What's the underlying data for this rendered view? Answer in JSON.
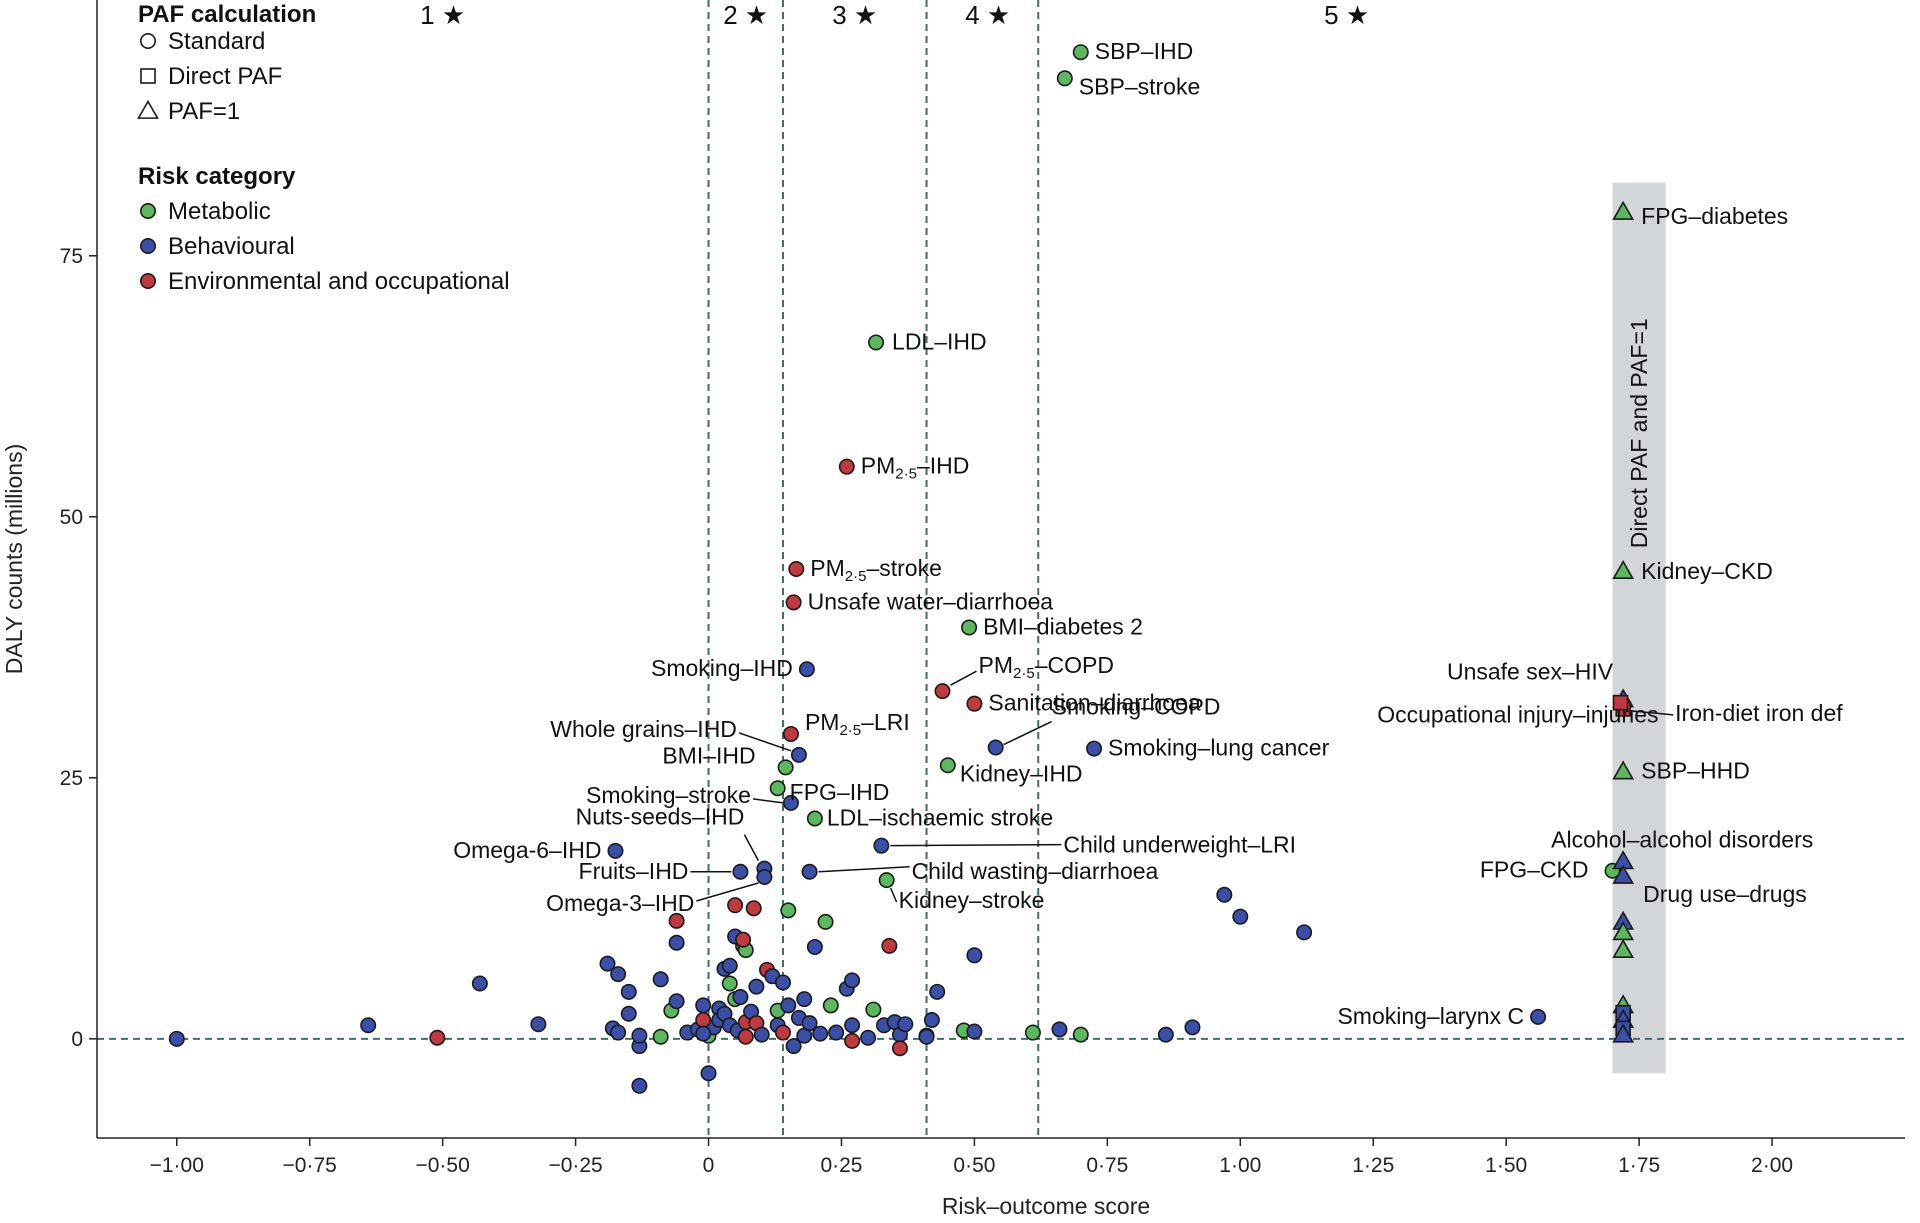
{
  "colors": {
    "metabolic": "#5cb85c",
    "behavioural": "#3a4fa8",
    "environmental": "#c0393f",
    "band": "#d3d6d9",
    "dashed": "#3c6e70",
    "point_stroke": "#1a1a1a"
  },
  "legend": {
    "paf_title": "PAF calculation",
    "paf_items": [
      {
        "shape": "circle",
        "label": "Standard"
      },
      {
        "shape": "square",
        "label": "Direct PAF"
      },
      {
        "shape": "triangle",
        "label": "PAF=1"
      }
    ],
    "risk_title": "Risk category",
    "risk_items": [
      {
        "cat": "metabolic",
        "label": "Metabolic"
      },
      {
        "cat": "behavioural",
        "label": "Behavioural"
      },
      {
        "cat": "environmental",
        "label": "Environmental and occupational"
      }
    ]
  },
  "chart_data": {
    "type": "scatter",
    "title": "",
    "xlabel": "Risk–outcome score",
    "ylabel": "DALY counts (millions)",
    "xlim": [
      -1.15,
      2.25
    ],
    "ylim": [
      -9.5,
      99.5
    ],
    "x_ticks": [
      -1.0,
      -0.75,
      -0.5,
      -0.25,
      0,
      0.25,
      0.5,
      0.75,
      1.0,
      1.25,
      1.5,
      1.75,
      2.0
    ],
    "x_tick_labels": [
      "−1·00",
      "−0·75",
      "−0·50",
      "−0·25",
      "0",
      "0·25",
      "0·50",
      "0·75",
      "1·00",
      "1·25",
      "1·50",
      "1·75",
      "2·00"
    ],
    "y_ticks": [
      0,
      25,
      50,
      75
    ],
    "y_tick_labels": [
      "0",
      "25",
      "50",
      "75"
    ],
    "star_zone_boundaries": [
      0,
      0.14,
      0.41,
      0.62
    ],
    "star_zones": [
      {
        "label": "1",
        "x": -0.5
      },
      {
        "label": "2",
        "x": 0.07
      },
      {
        "label": "3",
        "x": 0.275
      },
      {
        "label": "4",
        "x": 0.525
      },
      {
        "label": "5",
        "x": 1.2
      }
    ],
    "band": {
      "x": [
        1.7,
        1.8
      ],
      "y": [
        -3.3,
        82
      ],
      "label": "Direct PAF and PAF=1"
    },
    "labeled_points": [
      {
        "label": "SBP–IHD",
        "x": 0.7,
        "y": 94.5,
        "cat": "metabolic",
        "shape": "circle"
      },
      {
        "label": "SBP–stroke",
        "x": 0.67,
        "y": 92.0,
        "cat": "metabolic",
        "shape": "circle"
      },
      {
        "label": "LDL–IHD",
        "x": 0.315,
        "y": 66.7,
        "cat": "metabolic",
        "shape": "circle"
      },
      {
        "label": "PM",
        "sub": "2·5",
        "suffix": "–IHD",
        "x": 0.26,
        "y": 54.8,
        "cat": "environmental",
        "shape": "circle"
      },
      {
        "label": "PM",
        "sub": "2·5",
        "suffix": "–stroke",
        "x": 0.165,
        "y": 45.0,
        "cat": "environmental",
        "shape": "circle"
      },
      {
        "label": "Unsafe water–diarrhoea",
        "x": 0.16,
        "y": 41.8,
        "cat": "environmental",
        "shape": "circle"
      },
      {
        "label": "BMI–diabetes 2",
        "x": 0.49,
        "y": 39.4,
        "cat": "metabolic",
        "shape": "circle"
      },
      {
        "label": "Smoking–IHD",
        "x": 0.185,
        "y": 35.4,
        "cat": "behavioural",
        "shape": "circle"
      },
      {
        "label": "PM",
        "sub": "2·5",
        "suffix": "–COPD",
        "x": 0.44,
        "y": 33.3,
        "cat": "environmental",
        "shape": "circle"
      },
      {
        "label": "Sanitation–diarrhoea",
        "x": 0.5,
        "y": 32.1,
        "cat": "environmental",
        "shape": "circle"
      },
      {
        "label": "PM",
        "sub": "2·5",
        "suffix": "–LRI",
        "x": 0.155,
        "y": 29.2,
        "cat": "environmental",
        "shape": "circle"
      },
      {
        "label": "Whole grains–IHD",
        "x": 0.17,
        "y": 27.2,
        "cat": "behavioural",
        "shape": "circle"
      },
      {
        "label": "Smoking–COPD",
        "x": 0.54,
        "y": 27.9,
        "cat": "behavioural",
        "shape": "circle"
      },
      {
        "label": "Smoking–lung cancer",
        "x": 0.725,
        "y": 27.8,
        "cat": "behavioural",
        "shape": "circle"
      },
      {
        "label": "BMI–IHD",
        "x": 0.145,
        "y": 26.0,
        "cat": "metabolic",
        "shape": "circle"
      },
      {
        "label": "FPG–IHD",
        "x": 0.13,
        "y": 24.0,
        "cat": "metabolic",
        "shape": "circle"
      },
      {
        "label": "Kidney–IHD",
        "x": 0.45,
        "y": 26.2,
        "cat": "metabolic",
        "shape": "circle"
      },
      {
        "label": "Smoking–stroke",
        "x": 0.155,
        "y": 22.6,
        "cat": "behavioural",
        "shape": "circle"
      },
      {
        "label": "LDL–ischaemic stroke",
        "x": 0.2,
        "y": 21.1,
        "cat": "metabolic",
        "shape": "circle"
      },
      {
        "label": "Nuts-seeds–IHD",
        "x": 0.105,
        "y": 16.3,
        "cat": "behavioural",
        "shape": "circle"
      },
      {
        "label": "Omega-6–IHD",
        "x": -0.175,
        "y": 18.0,
        "cat": "behavioural",
        "shape": "circle"
      },
      {
        "label": "Child underweight–LRI",
        "x": 0.325,
        "y": 18.5,
        "cat": "behavioural",
        "shape": "circle"
      },
      {
        "label": "Fruits–IHD",
        "x": 0.06,
        "y": 16.0,
        "cat": "behavioural",
        "shape": "circle"
      },
      {
        "label": "Child wasting–diarrhoea",
        "x": 0.19,
        "y": 16.0,
        "cat": "behavioural",
        "shape": "circle"
      },
      {
        "label": "Omega-3–IHD",
        "x": 0.105,
        "y": 15.5,
        "cat": "behavioural",
        "shape": "circle"
      },
      {
        "label": "Kidney–stroke",
        "x": 0.335,
        "y": 15.2,
        "cat": "metabolic",
        "shape": "circle"
      },
      {
        "label": "Smoking–larynx C",
        "x": 1.56,
        "y": 2.1,
        "cat": "behavioural",
        "shape": "circle"
      },
      {
        "label": "FPG–CKD",
        "x": 1.7,
        "y": 16.1,
        "cat": "metabolic",
        "shape": "circle"
      },
      {
        "label": "FPG–diabetes",
        "x": 1.72,
        "y": 79.2,
        "cat": "metabolic",
        "shape": "triangle"
      },
      {
        "label": "Kidney–CKD",
        "x": 1.72,
        "y": 44.8,
        "cat": "metabolic",
        "shape": "triangle"
      },
      {
        "label": "Unsafe sex–HIV",
        "x": 1.72,
        "y": 32.5,
        "cat": "behavioural",
        "shape": "triangle"
      },
      {
        "label": "Iron-diet iron def",
        "x": 1.72,
        "y": 31.6,
        "cat": "environmental",
        "shape": "square"
      },
      {
        "label": "Occupational injury–injuries",
        "x": 1.715,
        "y": 32.2,
        "cat": "environmental",
        "shape": "square"
      },
      {
        "label": "SBP–HHD",
        "x": 1.72,
        "y": 25.6,
        "cat": "metabolic",
        "shape": "triangle"
      },
      {
        "label": "Alcohol–alcohol disorders",
        "x": 1.72,
        "y": 17.0,
        "cat": "behavioural",
        "shape": "triangle"
      },
      {
        "label": "Drug use–drugs",
        "x": 1.72,
        "y": 15.6,
        "cat": "behavioural",
        "shape": "triangle"
      }
    ],
    "unlabeled_points": [
      {
        "x": -1.0,
        "y": 0.0,
        "cat": "behavioural",
        "shape": "circle"
      },
      {
        "x": -0.64,
        "y": 1.3,
        "cat": "behavioural",
        "shape": "circle"
      },
      {
        "x": -0.51,
        "y": 0.1,
        "cat": "environmental",
        "shape": "circle"
      },
      {
        "x": -0.43,
        "y": 5.3,
        "cat": "behavioural",
        "shape": "circle"
      },
      {
        "x": -0.32,
        "y": 1.4,
        "cat": "behavioural",
        "shape": "circle"
      },
      {
        "x": -0.19,
        "y": 7.2,
        "cat": "behavioural",
        "shape": "circle"
      },
      {
        "x": -0.17,
        "y": 6.2,
        "cat": "behavioural",
        "shape": "circle"
      },
      {
        "x": -0.15,
        "y": 4.5,
        "cat": "behavioural",
        "shape": "circle"
      },
      {
        "x": -0.15,
        "y": 2.4,
        "cat": "behavioural",
        "shape": "circle"
      },
      {
        "x": -0.18,
        "y": 1.0,
        "cat": "behavioural",
        "shape": "circle"
      },
      {
        "x": -0.17,
        "y": 0.6,
        "cat": "behavioural",
        "shape": "circle"
      },
      {
        "x": -0.13,
        "y": -0.7,
        "cat": "behavioural",
        "shape": "circle"
      },
      {
        "x": -0.13,
        "y": -4.5,
        "cat": "behavioural",
        "shape": "circle"
      },
      {
        "x": -0.09,
        "y": 5.7,
        "cat": "behavioural",
        "shape": "circle"
      },
      {
        "x": -0.06,
        "y": 9.2,
        "cat": "behavioural",
        "shape": "circle"
      },
      {
        "x": -0.06,
        "y": 11.3,
        "cat": "environmental",
        "shape": "circle"
      },
      {
        "x": -0.07,
        "y": 2.7,
        "cat": "metabolic",
        "shape": "circle"
      },
      {
        "x": -0.06,
        "y": 3.6,
        "cat": "behavioural",
        "shape": "circle"
      },
      {
        "x": -0.09,
        "y": 0.2,
        "cat": "metabolic",
        "shape": "circle"
      },
      {
        "x": -0.04,
        "y": 0.6,
        "cat": "behavioural",
        "shape": "circle"
      },
      {
        "x": -0.13,
        "y": 0.3,
        "cat": "behavioural",
        "shape": "circle"
      },
      {
        "x": -0.02,
        "y": 0.9,
        "cat": "behavioural",
        "shape": "circle"
      },
      {
        "x": -0.01,
        "y": 3.2,
        "cat": "behavioural",
        "shape": "circle"
      },
      {
        "x": 0.0,
        "y": -3.3,
        "cat": "behavioural",
        "shape": "circle"
      },
      {
        "x": 0.0,
        "y": 0.3,
        "cat": "metabolic",
        "shape": "circle"
      },
      {
        "x": 0.01,
        "y": 1.1,
        "cat": "behavioural",
        "shape": "circle"
      },
      {
        "x": 0.02,
        "y": 2.9,
        "cat": "behavioural",
        "shape": "circle"
      },
      {
        "x": 0.03,
        "y": 6.7,
        "cat": "behavioural",
        "shape": "circle"
      },
      {
        "x": 0.04,
        "y": 7.0,
        "cat": "behavioural",
        "shape": "circle"
      },
      {
        "x": 0.04,
        "y": 5.3,
        "cat": "metabolic",
        "shape": "circle"
      },
      {
        "x": 0.05,
        "y": 9.8,
        "cat": "behavioural",
        "shape": "circle"
      },
      {
        "x": 0.05,
        "y": 12.8,
        "cat": "environmental",
        "shape": "circle"
      },
      {
        "x": 0.065,
        "y": 8.9,
        "cat": "environmental",
        "shape": "circle"
      },
      {
        "x": 0.07,
        "y": 8.5,
        "cat": "metabolic",
        "shape": "circle"
      },
      {
        "x": 0.065,
        "y": 9.5,
        "cat": "environmental",
        "shape": "circle"
      },
      {
        "x": 0.085,
        "y": 12.5,
        "cat": "environmental",
        "shape": "circle"
      },
      {
        "x": -0.01,
        "y": 1.8,
        "cat": "environmental",
        "shape": "circle"
      },
      {
        "x": -0.01,
        "y": 0.5,
        "cat": "behavioural",
        "shape": "circle"
      },
      {
        "x": 0.02,
        "y": 1.8,
        "cat": "behavioural",
        "shape": "circle"
      },
      {
        "x": 0.03,
        "y": 2.4,
        "cat": "behavioural",
        "shape": "circle"
      },
      {
        "x": 0.04,
        "y": 1.3,
        "cat": "behavioural",
        "shape": "circle"
      },
      {
        "x": 0.05,
        "y": 3.8,
        "cat": "metabolic",
        "shape": "circle"
      },
      {
        "x": 0.055,
        "y": 0.8,
        "cat": "behavioural",
        "shape": "circle"
      },
      {
        "x": 0.06,
        "y": 4.0,
        "cat": "behavioural",
        "shape": "circle"
      },
      {
        "x": 0.07,
        "y": 1.6,
        "cat": "environmental",
        "shape": "circle"
      },
      {
        "x": 0.07,
        "y": 0.2,
        "cat": "environmental",
        "shape": "circle"
      },
      {
        "x": 0.08,
        "y": 2.6,
        "cat": "behavioural",
        "shape": "circle"
      },
      {
        "x": 0.09,
        "y": 5.0,
        "cat": "behavioural",
        "shape": "circle"
      },
      {
        "x": 0.09,
        "y": 1.5,
        "cat": "environmental",
        "shape": "circle"
      },
      {
        "x": 0.1,
        "y": 0.4,
        "cat": "behavioural",
        "shape": "circle"
      },
      {
        "x": 0.11,
        "y": 6.6,
        "cat": "environmental",
        "shape": "circle"
      },
      {
        "x": 0.12,
        "y": 6.0,
        "cat": "behavioural",
        "shape": "circle"
      },
      {
        "x": 0.13,
        "y": 2.7,
        "cat": "metabolic",
        "shape": "circle"
      },
      {
        "x": 0.13,
        "y": 1.3,
        "cat": "behavioural",
        "shape": "circle"
      },
      {
        "x": 0.14,
        "y": 5.4,
        "cat": "behavioural",
        "shape": "circle"
      },
      {
        "x": 0.14,
        "y": 0.6,
        "cat": "environmental",
        "shape": "circle"
      },
      {
        "x": 0.15,
        "y": 3.2,
        "cat": "behavioural",
        "shape": "circle"
      },
      {
        "x": 0.15,
        "y": 12.3,
        "cat": "metabolic",
        "shape": "circle"
      },
      {
        "x": 0.16,
        "y": -0.7,
        "cat": "behavioural",
        "shape": "circle"
      },
      {
        "x": 0.17,
        "y": 2.0,
        "cat": "behavioural",
        "shape": "circle"
      },
      {
        "x": 0.18,
        "y": 0.3,
        "cat": "behavioural",
        "shape": "circle"
      },
      {
        "x": 0.18,
        "y": 3.8,
        "cat": "behavioural",
        "shape": "circle"
      },
      {
        "x": 0.19,
        "y": 1.5,
        "cat": "behavioural",
        "shape": "circle"
      },
      {
        "x": 0.2,
        "y": 8.8,
        "cat": "behavioural",
        "shape": "circle"
      },
      {
        "x": 0.21,
        "y": 0.5,
        "cat": "behavioural",
        "shape": "circle"
      },
      {
        "x": 0.22,
        "y": 11.2,
        "cat": "metabolic",
        "shape": "circle"
      },
      {
        "x": 0.23,
        "y": 3.2,
        "cat": "metabolic",
        "shape": "circle"
      },
      {
        "x": 0.24,
        "y": 0.6,
        "cat": "behavioural",
        "shape": "circle"
      },
      {
        "x": 0.26,
        "y": 4.8,
        "cat": "behavioural",
        "shape": "circle"
      },
      {
        "x": 0.27,
        "y": 5.6,
        "cat": "behavioural",
        "shape": "circle"
      },
      {
        "x": 0.27,
        "y": 1.3,
        "cat": "behavioural",
        "shape": "circle"
      },
      {
        "x": 0.27,
        "y": -0.2,
        "cat": "environmental",
        "shape": "circle"
      },
      {
        "x": 0.3,
        "y": 0.1,
        "cat": "behavioural",
        "shape": "circle"
      },
      {
        "x": 0.31,
        "y": 2.8,
        "cat": "metabolic",
        "shape": "circle"
      },
      {
        "x": 0.33,
        "y": 1.3,
        "cat": "behavioural",
        "shape": "circle"
      },
      {
        "x": 0.34,
        "y": 8.9,
        "cat": "environmental",
        "shape": "circle"
      },
      {
        "x": 0.35,
        "y": 1.6,
        "cat": "behavioural",
        "shape": "circle"
      },
      {
        "x": 0.36,
        "y": 0.4,
        "cat": "behavioural",
        "shape": "circle"
      },
      {
        "x": 0.36,
        "y": -0.9,
        "cat": "environmental",
        "shape": "circle"
      },
      {
        "x": 0.37,
        "y": 1.4,
        "cat": "behavioural",
        "shape": "circle"
      },
      {
        "x": 0.41,
        "y": 0.3,
        "cat": "metabolic",
        "shape": "circle"
      },
      {
        "x": 0.41,
        "y": 0.2,
        "cat": "behavioural",
        "shape": "circle"
      },
      {
        "x": 0.42,
        "y": 1.8,
        "cat": "behavioural",
        "shape": "circle"
      },
      {
        "x": 0.43,
        "y": 4.5,
        "cat": "behavioural",
        "shape": "circle"
      },
      {
        "x": 0.48,
        "y": 0.8,
        "cat": "metabolic",
        "shape": "circle"
      },
      {
        "x": 0.5,
        "y": 0.7,
        "cat": "behavioural",
        "shape": "circle"
      },
      {
        "x": 0.5,
        "y": 8.0,
        "cat": "behavioural",
        "shape": "circle"
      },
      {
        "x": 0.61,
        "y": 0.6,
        "cat": "metabolic",
        "shape": "circle"
      },
      {
        "x": 0.66,
        "y": 0.9,
        "cat": "behavioural",
        "shape": "circle"
      },
      {
        "x": 0.7,
        "y": 0.4,
        "cat": "metabolic",
        "shape": "circle"
      },
      {
        "x": 0.86,
        "y": 0.4,
        "cat": "behavioural",
        "shape": "circle"
      },
      {
        "x": 0.91,
        "y": 1.1,
        "cat": "behavioural",
        "shape": "circle"
      },
      {
        "x": 0.97,
        "y": 13.8,
        "cat": "behavioural",
        "shape": "circle"
      },
      {
        "x": 1.0,
        "y": 11.7,
        "cat": "behavioural",
        "shape": "circle"
      },
      {
        "x": 1.12,
        "y": 10.2,
        "cat": "behavioural",
        "shape": "circle"
      },
      {
        "x": 1.72,
        "y": 11.2,
        "cat": "behavioural",
        "shape": "triangle"
      },
      {
        "x": 1.72,
        "y": 10.2,
        "cat": "metabolic",
        "shape": "triangle"
      },
      {
        "x": 1.72,
        "y": 8.5,
        "cat": "metabolic",
        "shape": "triangle"
      },
      {
        "x": 1.72,
        "y": 3.2,
        "cat": "metabolic",
        "shape": "triangle"
      },
      {
        "x": 1.72,
        "y": 2.5,
        "cat": "behavioural",
        "shape": "square"
      },
      {
        "x": 1.72,
        "y": 1.8,
        "cat": "behavioural",
        "shape": "triangle"
      },
      {
        "x": 1.72,
        "y": 1.0,
        "cat": "behavioural",
        "shape": "square"
      },
      {
        "x": 1.72,
        "y": 0.4,
        "cat": "behavioural",
        "shape": "triangle"
      }
    ]
  }
}
